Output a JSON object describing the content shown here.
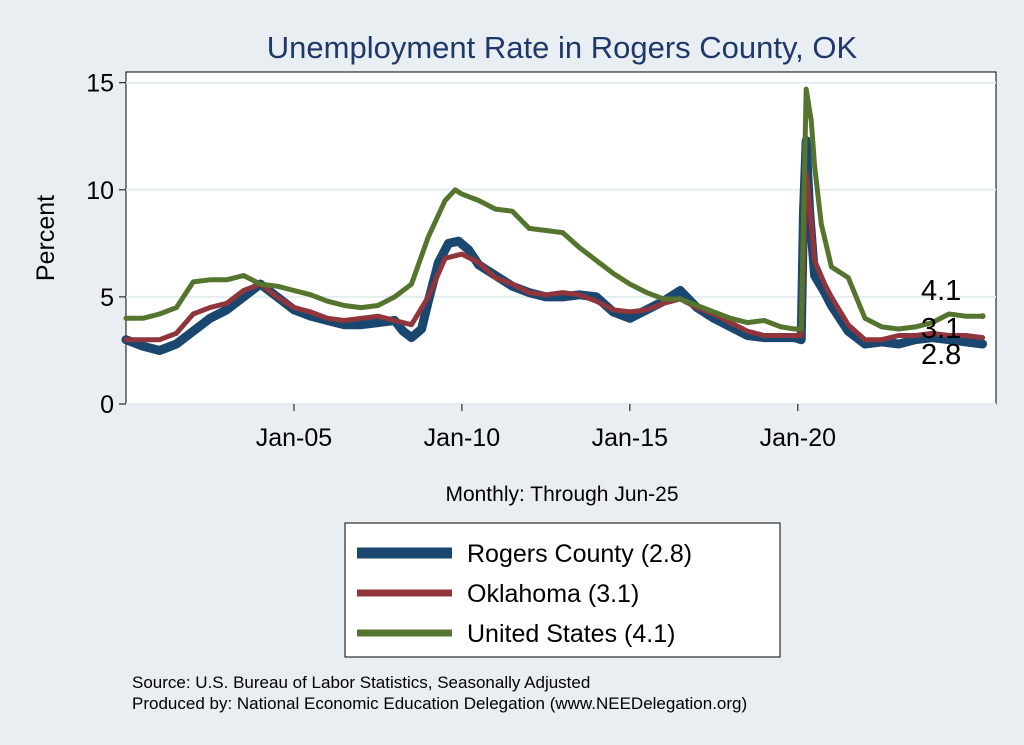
{
  "chart_data": {
    "type": "line",
    "title": "Unemployment Rate in Rogers  County, OK",
    "ylabel": "Percent",
    "xlabel": "Monthly: Through Jun-25",
    "ylim": [
      0,
      15.5
    ],
    "xlim": [
      2000.0,
      2025.9
    ],
    "yticks": [
      0,
      5,
      10,
      15
    ],
    "xticks": [
      {
        "x": 2005.0,
        "label": "Jan-05"
      },
      {
        "x": 2010.0,
        "label": "Jan-10"
      },
      {
        "x": 2015.0,
        "label": "Jan-15"
      },
      {
        "x": 2020.0,
        "label": "Jan-20"
      }
    ],
    "grid": true,
    "legend": "bottom",
    "series": [
      {
        "name": "Rogers  County (2.8)",
        "color": "#1a476f",
        "end_label": "2.8",
        "points": [
          [
            2000.0,
            3.0
          ],
          [
            2000.5,
            2.7
          ],
          [
            2001.0,
            2.5
          ],
          [
            2001.5,
            2.8
          ],
          [
            2002.0,
            3.4
          ],
          [
            2002.5,
            4.0
          ],
          [
            2003.0,
            4.4
          ],
          [
            2003.5,
            5.0
          ],
          [
            2004.0,
            5.6
          ],
          [
            2004.5,
            5.0
          ],
          [
            2005.0,
            4.4
          ],
          [
            2005.5,
            4.1
          ],
          [
            2006.0,
            3.9
          ],
          [
            2006.5,
            3.7
          ],
          [
            2007.0,
            3.7
          ],
          [
            2007.5,
            3.8
          ],
          [
            2008.0,
            3.9
          ],
          [
            2008.25,
            3.4
          ],
          [
            2008.5,
            3.1
          ],
          [
            2008.8,
            3.5
          ],
          [
            2009.0,
            4.8
          ],
          [
            2009.3,
            6.6
          ],
          [
            2009.6,
            7.5
          ],
          [
            2009.9,
            7.6
          ],
          [
            2010.2,
            7.2
          ],
          [
            2010.5,
            6.5
          ],
          [
            2011.0,
            6.0
          ],
          [
            2011.5,
            5.5
          ],
          [
            2012.0,
            5.2
          ],
          [
            2012.5,
            5.0
          ],
          [
            2013.0,
            5.0
          ],
          [
            2013.5,
            5.1
          ],
          [
            2014.0,
            5.0
          ],
          [
            2014.5,
            4.3
          ],
          [
            2015.0,
            4.0
          ],
          [
            2015.5,
            4.4
          ],
          [
            2016.0,
            4.8
          ],
          [
            2016.5,
            5.3
          ],
          [
            2017.0,
            4.5
          ],
          [
            2017.5,
            4.0
          ],
          [
            2018.0,
            3.6
          ],
          [
            2018.5,
            3.2
          ],
          [
            2019.0,
            3.1
          ],
          [
            2019.5,
            3.1
          ],
          [
            2019.9,
            3.1
          ],
          [
            2020.1,
            3.0
          ],
          [
            2020.17,
            9.0
          ],
          [
            2020.25,
            12.3
          ],
          [
            2020.35,
            9.0
          ],
          [
            2020.5,
            6.0
          ],
          [
            2020.8,
            5.2
          ],
          [
            2021.0,
            4.6
          ],
          [
            2021.5,
            3.4
          ],
          [
            2022.0,
            2.8
          ],
          [
            2022.5,
            2.9
          ],
          [
            2023.0,
            2.8
          ],
          [
            2023.5,
            3.0
          ],
          [
            2024.0,
            3.1
          ],
          [
            2024.5,
            3.0
          ],
          [
            2025.0,
            2.9
          ],
          [
            2025.5,
            2.8
          ]
        ]
      },
      {
        "name": "Oklahoma (3.1)",
        "color": "#90353b",
        "end_label": "3.1",
        "points": [
          [
            2000.0,
            3.0
          ],
          [
            2000.5,
            3.0
          ],
          [
            2001.0,
            3.0
          ],
          [
            2001.5,
            3.3
          ],
          [
            2002.0,
            4.2
          ],
          [
            2002.5,
            4.5
          ],
          [
            2003.0,
            4.7
          ],
          [
            2003.5,
            5.3
          ],
          [
            2004.0,
            5.6
          ],
          [
            2004.5,
            5.0
          ],
          [
            2005.0,
            4.5
          ],
          [
            2005.5,
            4.3
          ],
          [
            2006.0,
            4.0
          ],
          [
            2006.5,
            3.9
          ],
          [
            2007.0,
            4.0
          ],
          [
            2007.5,
            4.1
          ],
          [
            2008.0,
            3.9
          ],
          [
            2008.5,
            3.7
          ],
          [
            2009.0,
            5.0
          ],
          [
            2009.5,
            6.8
          ],
          [
            2010.0,
            7.0
          ],
          [
            2010.5,
            6.6
          ],
          [
            2011.0,
            5.9
          ],
          [
            2011.5,
            5.6
          ],
          [
            2012.0,
            5.2
          ],
          [
            2012.5,
            5.1
          ],
          [
            2013.0,
            5.2
          ],
          [
            2013.5,
            5.1
          ],
          [
            2014.0,
            4.8
          ],
          [
            2014.5,
            4.4
          ],
          [
            2015.0,
            4.3
          ],
          [
            2015.5,
            4.4
          ],
          [
            2016.0,
            4.7
          ],
          [
            2016.5,
            4.9
          ],
          [
            2017.0,
            4.5
          ],
          [
            2017.5,
            4.2
          ],
          [
            2018.0,
            3.8
          ],
          [
            2018.5,
            3.4
          ],
          [
            2019.0,
            3.2
          ],
          [
            2019.5,
            3.2
          ],
          [
            2019.9,
            3.2
          ],
          [
            2020.1,
            3.2
          ],
          [
            2020.25,
            10.8
          ],
          [
            2020.4,
            8.5
          ],
          [
            2020.5,
            6.7
          ],
          [
            2020.8,
            5.6
          ],
          [
            2021.0,
            5.0
          ],
          [
            2021.5,
            3.7
          ],
          [
            2022.0,
            3.0
          ],
          [
            2022.5,
            3.0
          ],
          [
            2023.0,
            3.2
          ],
          [
            2023.5,
            3.2
          ],
          [
            2024.0,
            3.3
          ],
          [
            2024.5,
            3.2
          ],
          [
            2025.0,
            3.2
          ],
          [
            2025.5,
            3.1
          ]
        ]
      },
      {
        "name": "United States (4.1)",
        "color": "#55752f",
        "end_label": "4.1",
        "points": [
          [
            2000.0,
            4.0
          ],
          [
            2000.5,
            4.0
          ],
          [
            2001.0,
            4.2
          ],
          [
            2001.5,
            4.5
          ],
          [
            2002.0,
            5.7
          ],
          [
            2002.5,
            5.8
          ],
          [
            2003.0,
            5.8
          ],
          [
            2003.5,
            6.0
          ],
          [
            2004.0,
            5.6
          ],
          [
            2004.5,
            5.5
          ],
          [
            2005.0,
            5.3
          ],
          [
            2005.5,
            5.1
          ],
          [
            2006.0,
            4.8
          ],
          [
            2006.5,
            4.6
          ],
          [
            2007.0,
            4.5
          ],
          [
            2007.5,
            4.6
          ],
          [
            2008.0,
            5.0
          ],
          [
            2008.5,
            5.6
          ],
          [
            2009.0,
            7.8
          ],
          [
            2009.5,
            9.5
          ],
          [
            2009.8,
            10.0
          ],
          [
            2010.0,
            9.8
          ],
          [
            2010.5,
            9.5
          ],
          [
            2011.0,
            9.1
          ],
          [
            2011.5,
            9.0
          ],
          [
            2012.0,
            8.2
          ],
          [
            2012.5,
            8.1
          ],
          [
            2013.0,
            8.0
          ],
          [
            2013.5,
            7.3
          ],
          [
            2014.0,
            6.7
          ],
          [
            2014.5,
            6.1
          ],
          [
            2015.0,
            5.6
          ],
          [
            2015.5,
            5.2
          ],
          [
            2016.0,
            4.9
          ],
          [
            2016.5,
            4.9
          ],
          [
            2017.0,
            4.6
          ],
          [
            2017.5,
            4.3
          ],
          [
            2018.0,
            4.0
          ],
          [
            2018.5,
            3.8
          ],
          [
            2019.0,
            3.9
          ],
          [
            2019.5,
            3.6
          ],
          [
            2019.9,
            3.5
          ],
          [
            2020.1,
            3.5
          ],
          [
            2020.25,
            14.7
          ],
          [
            2020.4,
            13.2
          ],
          [
            2020.5,
            11.1
          ],
          [
            2020.7,
            8.4
          ],
          [
            2021.0,
            6.4
          ],
          [
            2021.5,
            5.9
          ],
          [
            2022.0,
            4.0
          ],
          [
            2022.5,
            3.6
          ],
          [
            2023.0,
            3.5
          ],
          [
            2023.5,
            3.6
          ],
          [
            2024.0,
            3.8
          ],
          [
            2024.5,
            4.2
          ],
          [
            2025.0,
            4.1
          ],
          [
            2025.5,
            4.1
          ]
        ]
      }
    ],
    "notes": [
      "Source: U.S. Bureau of Labor Statistics, Seasonally Adjusted",
      "Produced by: National Economic Education Delegation (www.NEEDelegation.org)"
    ]
  }
}
